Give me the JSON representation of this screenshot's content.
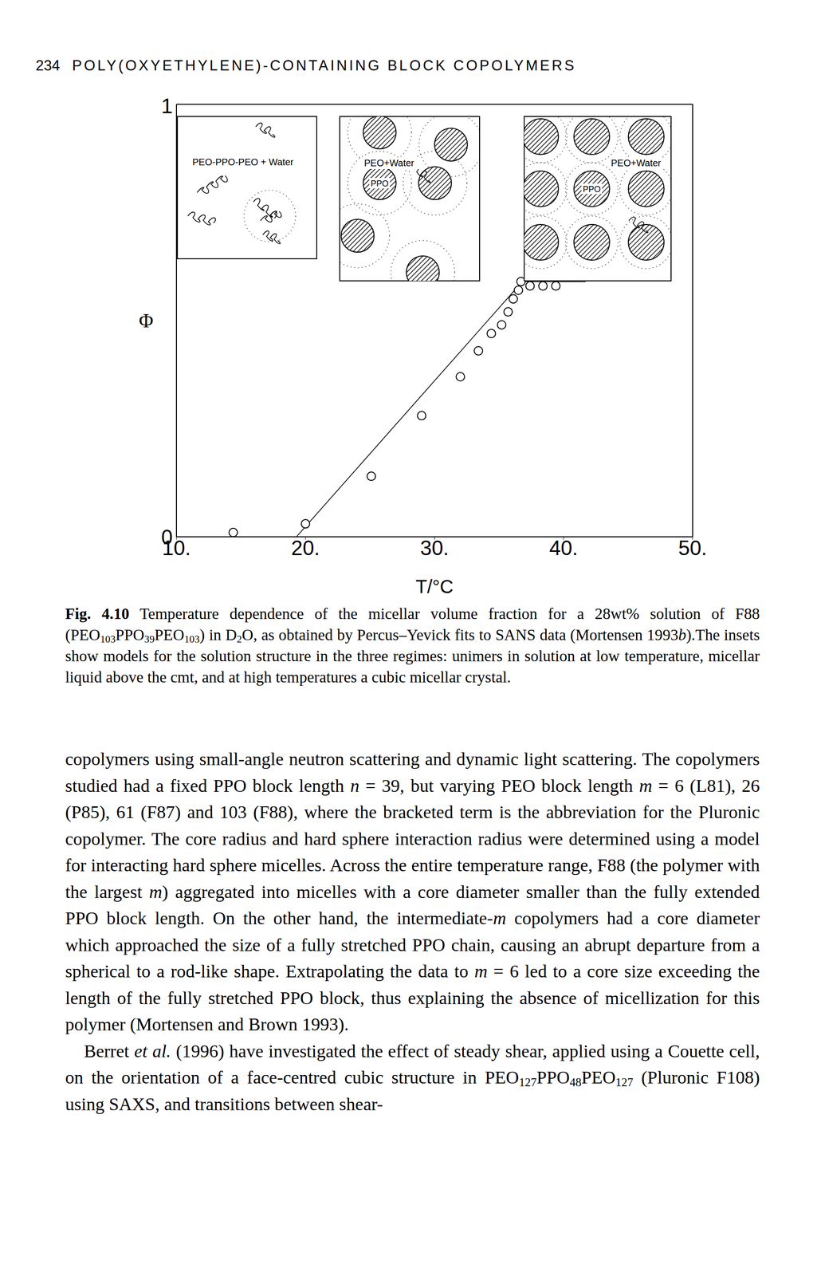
{
  "header": {
    "page_number": "234",
    "running_title": "POLY(OXYETHYLENE)-CONTAINING BLOCK COPOLYMERS"
  },
  "chart_data": {
    "type": "scatter",
    "xlabel": "T/°C",
    "ylabel": "Φ",
    "xlim": [
      10,
      50
    ],
    "xticks": [
      {
        "value": 10,
        "label": "10."
      },
      {
        "value": 20,
        "label": "20."
      },
      {
        "value": 30,
        "label": "30."
      },
      {
        "value": 40,
        "label": "40."
      },
      {
        "value": 50,
        "label": "50."
      }
    ],
    "ylim": [
      0,
      1
    ],
    "yticks": [
      0,
      1
    ],
    "grid": false,
    "series": [
      {
        "type": "line",
        "line_style": "solid",
        "color": "#000000",
        "x": [
          19.3,
          36.8,
          41.7
        ],
        "values": [
          0,
          0.59,
          0.59
        ]
      },
      {
        "type": "scatter",
        "marker": "circle",
        "color": "#000000",
        "x": [
          14.4,
          20.0,
          25.1,
          29.0,
          32.0,
          33.4,
          34.4,
          35.2,
          35.7,
          36.1,
          36.5,
          36.7,
          37.4,
          38.4,
          39.4
        ],
        "values": [
          0.01,
          0.03,
          0.14,
          0.28,
          0.37,
          0.43,
          0.47,
          0.49,
          0.52,
          0.55,
          0.57,
          0.59,
          0.58,
          0.58,
          0.58
        ]
      }
    ],
    "insets": [
      {
        "label": "PEO-PPO-PEO + Water"
      },
      {
        "label": "PEO+Water",
        "core_label": "PPO"
      },
      {
        "label": "PEO+Water",
        "core_label": "PPO"
      }
    ]
  },
  "caption": [
    {
      "b": "Fig. 4.10"
    },
    " Temperature dependence of the micellar volume fraction for a 28wt% solution of F88 (PEO",
    {
      "sub": "103"
    },
    "PPO",
    {
      "sub": "39"
    },
    "PEO",
    {
      "sub": "103"
    },
    ") in D",
    {
      "sub": "2"
    },
    "O, as obtained by Percus–Yevick fits to SANS data (Mortensen 1993",
    {
      "i": "b"
    },
    ").The insets show models for the solution structure in the three regimes: unimers in solution at low temperature, micellar liquid above the cmt, and at high temperatures a cubic micellar crystal."
  ],
  "paragraphs": [
    {
      "indent": false,
      "runs": [
        "copolymers using small-angle neutron scattering and dynamic light scattering. The copolymers studied had a fixed PPO block length ",
        {
          "i": "n"
        },
        " = 39, but varying PEO block length ",
        {
          "i": "m"
        },
        " = 6 (L81), 26 (P85), 61 (F87) and 103 (F88), where the bracketed term is the abbreviation for the Pluronic copolymer. The core radius and hard sphere interaction radius were determined using a model for interacting hard sphere micelles. Across the entire temperature range, F88 (the polymer with the largest ",
        {
          "i": "m"
        },
        ") aggregated into micelles with a core diameter smaller than the fully extended PPO block length. On the other hand, the intermediate-",
        {
          "i": "m"
        },
        " copolymers had a core diameter which approached the size of a fully stretched PPO chain, causing an abrupt departure from a spherical to a rod-like shape. Extrapolating the data to ",
        {
          "i": "m"
        },
        " = 6 led to a core size exceeding the length of the fully stretched PPO block, thus explaining the absence of micellization for this polymer (Mortensen and Brown 1993)."
      ]
    },
    {
      "indent": true,
      "runs": [
        "Berret ",
        {
          "i": "et al."
        },
        " (1996) have investigated the effect of steady shear, applied using a Couette cell, on the orientation of a face-centred cubic structure in PEO",
        {
          "sub": "127"
        },
        "PPO",
        {
          "sub": "48"
        },
        "PEO",
        {
          "sub": "127"
        },
        " (Pluronic F108) using SAXS, and transitions between shear-"
      ]
    }
  ]
}
